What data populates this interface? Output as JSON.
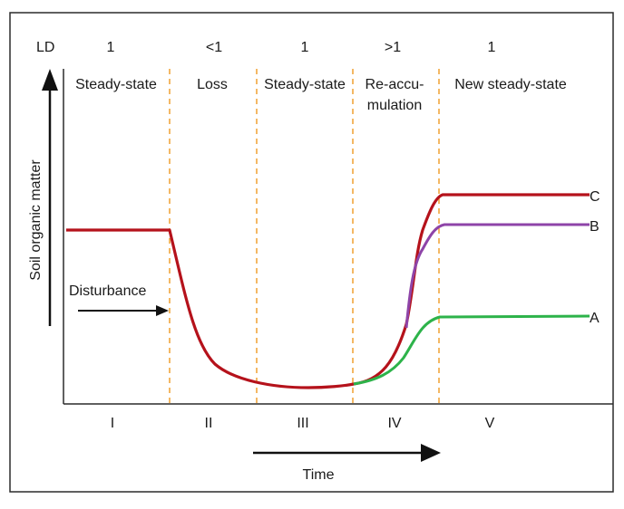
{
  "header": {
    "row_label": "LD",
    "values": [
      "1",
      "<1",
      "1",
      ">1",
      "1"
    ]
  },
  "phases": [
    {
      "title_lines": [
        "Steady-state"
      ],
      "numeral": "I"
    },
    {
      "title_lines": [
        "Loss"
      ],
      "numeral": "II"
    },
    {
      "title_lines": [
        "Steady-state"
      ],
      "numeral": "III"
    },
    {
      "title_lines": [
        "Re-accu-",
        "mulation"
      ],
      "numeral": "IV"
    },
    {
      "title_lines": [
        "New steady-state"
      ],
      "numeral": "V"
    }
  ],
  "y_axis_label": "Soil organic matter",
  "x_axis_label": "Time",
  "disturbance_label": "Disturbance",
  "curves": [
    {
      "label": "C",
      "color": "#b5121b"
    },
    {
      "label": "B",
      "color": "#8e44a8"
    },
    {
      "label": "A",
      "color": "#2db34a"
    }
  ],
  "colors": {
    "frame": "#2b2b2b",
    "divider": "#f0a030",
    "main_curve": "#b5121b",
    "arrow": "#111111"
  }
}
